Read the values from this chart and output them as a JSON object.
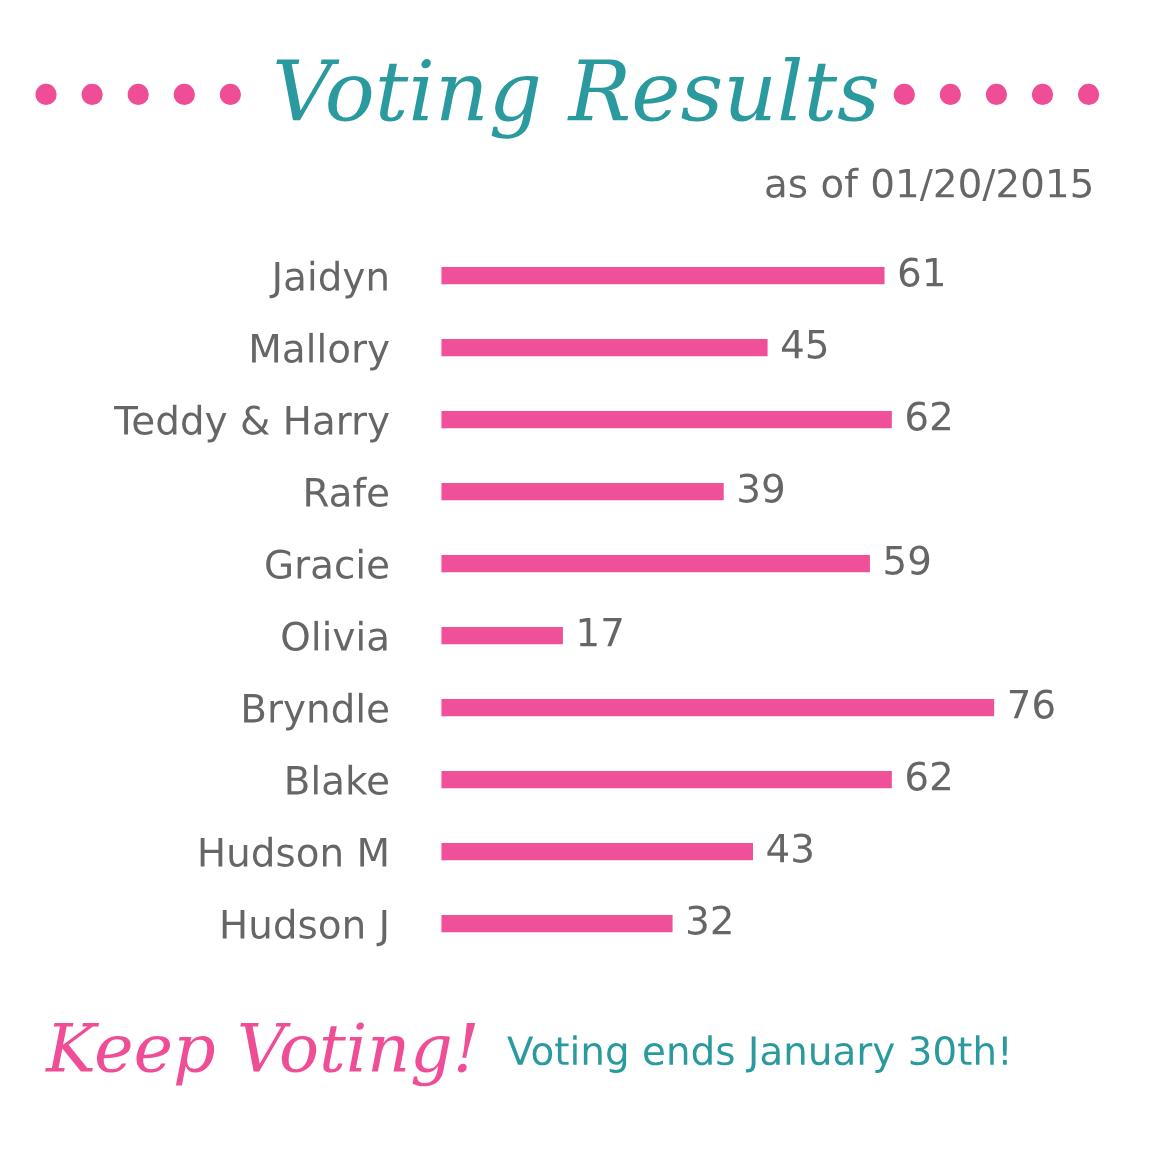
{
  "chart_data": {
    "type": "bar",
    "orientation": "horizontal",
    "title": "Voting Results",
    "subtitle": "as of 01/20/2015",
    "categories": [
      "Jaidyn",
      "Mallory",
      "Teddy & Harry",
      "Rafe",
      "Gracie",
      "Olivia",
      "Bryndle",
      "Blake",
      "Hudson M",
      "Hudson J"
    ],
    "values": [
      61,
      45,
      62,
      39,
      59,
      17,
      76,
      62,
      43,
      32
    ],
    "color": "#f0509a",
    "data_labels": true,
    "tick_labels": "y",
    "grid": false,
    "legend": false,
    "annotations": [
      "Keep Voting!",
      "Voting ends January 30th!"
    ]
  }
}
